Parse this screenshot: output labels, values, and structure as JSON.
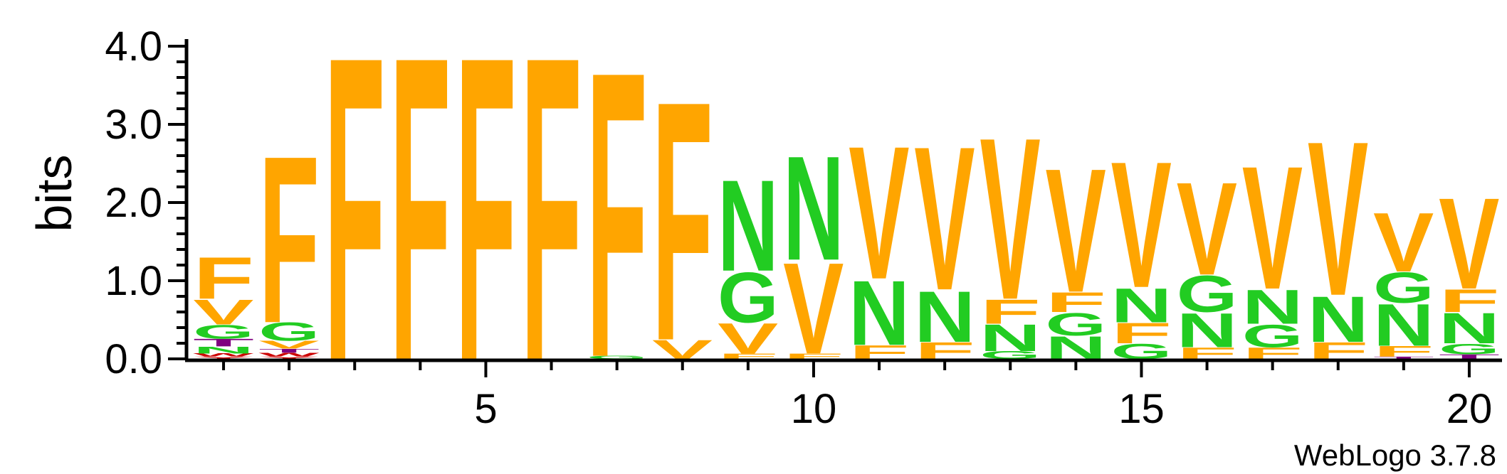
{
  "chart_data": {
    "type": "sequence-logo",
    "ylabel": "bits",
    "ylim": [
      0,
      4
    ],
    "y_ticks": [
      "0.0",
      "1.0",
      "2.0",
      "3.0",
      "4.0"
    ],
    "x_ticks": [
      "5",
      "10",
      "15",
      "20"
    ],
    "x_tick_values": [
      5,
      10,
      15,
      20
    ],
    "positions": [
      {
        "pos": 1,
        "letters": [
          {
            "l": "Y",
            "h": 0.03,
            "color": "#cc0000"
          },
          {
            "l": "W",
            "h": 0.04,
            "color": "#cc0000"
          },
          {
            "l": "N",
            "h": 0.09,
            "color": "#22cc22"
          },
          {
            "l": "T",
            "h": 0.1,
            "color": "#800080"
          },
          {
            "l": "G",
            "h": 0.18,
            "color": "#22cc22"
          },
          {
            "l": "V",
            "h": 0.33,
            "color": "#ffa500"
          },
          {
            "l": "F",
            "h": 0.55,
            "color": "#ffa500"
          }
        ]
      },
      {
        "pos": 2,
        "letters": [
          {
            "l": "Y",
            "h": 0.03,
            "color": "#cc0000"
          },
          {
            "l": "W",
            "h": 0.05,
            "color": "#cc0000"
          },
          {
            "l": "T",
            "h": 0.05,
            "color": "#800080"
          },
          {
            "l": "V",
            "h": 0.1,
            "color": "#ffa500"
          },
          {
            "l": "G",
            "h": 0.24,
            "color": "#22cc22"
          },
          {
            "l": "F",
            "h": 2.2,
            "color": "#ffa500"
          }
        ]
      },
      {
        "pos": 3,
        "letters": [
          {
            "l": "F",
            "h": 4.0,
            "color": "#ffa500"
          }
        ]
      },
      {
        "pos": 4,
        "letters": [
          {
            "l": "F",
            "h": 4.0,
            "color": "#ffa500"
          }
        ]
      },
      {
        "pos": 5,
        "letters": [
          {
            "l": "F",
            "h": 4.0,
            "color": "#ffa500"
          }
        ]
      },
      {
        "pos": 6,
        "letters": [
          {
            "l": "F",
            "h": 4.0,
            "color": "#ffa500"
          }
        ]
      },
      {
        "pos": 7,
        "letters": [
          {
            "l": "G",
            "h": 0.04,
            "color": "#22cc22"
          },
          {
            "l": "F",
            "h": 3.76,
            "color": "#ffa500"
          }
        ]
      },
      {
        "pos": 8,
        "letters": [
          {
            "l": "V",
            "h": 0.25,
            "color": "#ffa500"
          },
          {
            "l": "F",
            "h": 3.15,
            "color": "#ffa500"
          }
        ]
      },
      {
        "pos": 9,
        "letters": [
          {
            "l": "F",
            "h": 0.07,
            "color": "#ffa500"
          },
          {
            "l": "V",
            "h": 0.4,
            "color": "#ffa500"
          },
          {
            "l": "G",
            "h": 0.66,
            "color": "#22cc22"
          },
          {
            "l": "N",
            "h": 1.2,
            "color": "#22cc22"
          }
        ]
      },
      {
        "pos": 10,
        "letters": [
          {
            "l": "F",
            "h": 0.07,
            "color": "#ffa500"
          },
          {
            "l": "V",
            "h": 1.2,
            "color": "#ffa500"
          },
          {
            "l": "N",
            "h": 1.37,
            "color": "#22cc22"
          }
        ]
      },
      {
        "pos": 11,
        "letters": [
          {
            "l": "F",
            "h": 0.18,
            "color": "#ffa500"
          },
          {
            "l": "N",
            "h": 0.85,
            "color": "#22cc22"
          },
          {
            "l": "V",
            "h": 1.75,
            "color": "#ffa500"
          }
        ]
      },
      {
        "pos": 12,
        "letters": [
          {
            "l": "F",
            "h": 0.22,
            "color": "#ffa500"
          },
          {
            "l": "N",
            "h": 0.67,
            "color": "#22cc22"
          },
          {
            "l": "V",
            "h": 1.89,
            "color": "#ffa500"
          }
        ]
      },
      {
        "pos": 13,
        "letters": [
          {
            "l": "G",
            "h": 0.1,
            "color": "#22cc22"
          },
          {
            "l": "N",
            "h": 0.35,
            "color": "#22cc22"
          },
          {
            "l": "F",
            "h": 0.32,
            "color": "#ffa500"
          },
          {
            "l": "V",
            "h": 2.13,
            "color": "#ffa500"
          }
        ]
      },
      {
        "pos": 14,
        "letters": [
          {
            "l": "N",
            "h": 0.3,
            "color": "#22cc22"
          },
          {
            "l": "G",
            "h": 0.3,
            "color": "#22cc22"
          },
          {
            "l": "F",
            "h": 0.26,
            "color": "#ffa500"
          },
          {
            "l": "V",
            "h": 1.63,
            "color": "#ffa500"
          }
        ]
      },
      {
        "pos": 15,
        "letters": [
          {
            "l": "G",
            "h": 0.2,
            "color": "#22cc22"
          },
          {
            "l": "F",
            "h": 0.27,
            "color": "#ffa500"
          },
          {
            "l": "N",
            "h": 0.45,
            "color": "#22cc22"
          },
          {
            "l": "V",
            "h": 1.66,
            "color": "#ffa500"
          }
        ]
      },
      {
        "pos": 16,
        "letters": [
          {
            "l": "F",
            "h": 0.15,
            "color": "#ffa500"
          },
          {
            "l": "N",
            "h": 0.45,
            "color": "#22cc22"
          },
          {
            "l": "G",
            "h": 0.48,
            "color": "#22cc22"
          },
          {
            "l": "V",
            "h": 1.22,
            "color": "#ffa500"
          }
        ]
      },
      {
        "pos": 17,
        "letters": [
          {
            "l": "F",
            "h": 0.15,
            "color": "#ffa500"
          },
          {
            "l": "G",
            "h": 0.3,
            "color": "#22cc22"
          },
          {
            "l": "N",
            "h": 0.45,
            "color": "#22cc22"
          },
          {
            "l": "V",
            "h": 1.62,
            "color": "#ffa500"
          }
        ]
      },
      {
        "pos": 18,
        "letters": [
          {
            "l": "F",
            "h": 0.22,
            "color": "#ffa500"
          },
          {
            "l": "N",
            "h": 0.6,
            "color": "#22cc22"
          },
          {
            "l": "V",
            "h": 2.03,
            "color": "#ffa500"
          }
        ]
      },
      {
        "pos": 19,
        "letters": [
          {
            "l": "T",
            "h": 0.03,
            "color": "#800080"
          },
          {
            "l": "F",
            "h": 0.14,
            "color": "#ffa500"
          },
          {
            "l": "N",
            "h": 0.55,
            "color": "#22cc22"
          },
          {
            "l": "G",
            "h": 0.4,
            "color": "#22cc22"
          },
          {
            "l": "V",
            "h": 0.78,
            "color": "#ffa500"
          }
        ]
      },
      {
        "pos": 20,
        "letters": [
          {
            "l": "T",
            "h": 0.06,
            "color": "#800080"
          },
          {
            "l": "G",
            "h": 0.14,
            "color": "#22cc22"
          },
          {
            "l": "N",
            "h": 0.4,
            "color": "#22cc22"
          },
          {
            "l": "F",
            "h": 0.3,
            "color": "#ffa500"
          },
          {
            "l": "V",
            "h": 1.2,
            "color": "#ffa500"
          }
        ]
      }
    ]
  },
  "footer": {
    "credit": "WebLogo 3.7.8"
  }
}
